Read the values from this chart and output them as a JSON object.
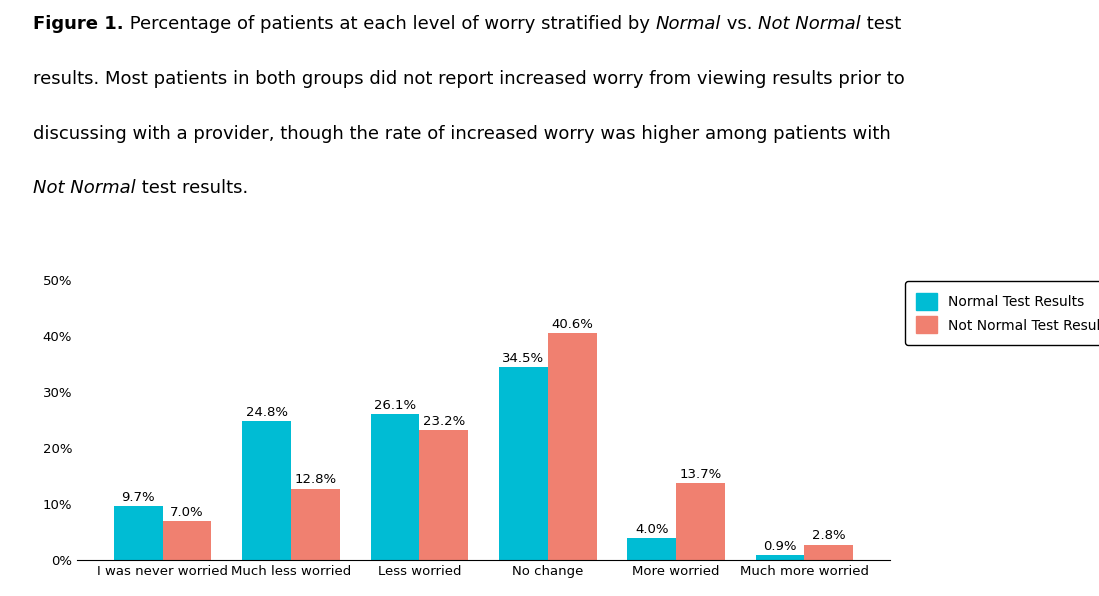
{
  "categories": [
    "I was never worried",
    "Much less worried",
    "Less worried",
    "No change",
    "More worried",
    "Much more worried"
  ],
  "normal_values": [
    9.7,
    24.8,
    26.1,
    34.5,
    4.0,
    0.9
  ],
  "not_normal_values": [
    7.0,
    12.8,
    23.2,
    40.6,
    13.7,
    2.8
  ],
  "normal_color": "#00BCD4",
  "not_normal_color": "#F08070",
  "normal_label": "Normal Test Results",
  "not_normal_label": "Not Normal Test Results",
  "ylim": [
    0,
    50
  ],
  "yticks": [
    0,
    10,
    20,
    30,
    40,
    50
  ],
  "ytick_labels": [
    "0%",
    "10%",
    "20%",
    "30%",
    "40%",
    "50%"
  ],
  "bar_width": 0.38,
  "background_color": "#ffffff",
  "label_fontsize": 9.5,
  "tick_fontsize": 9.5,
  "legend_fontsize": 10,
  "caption_fontsize": 13
}
